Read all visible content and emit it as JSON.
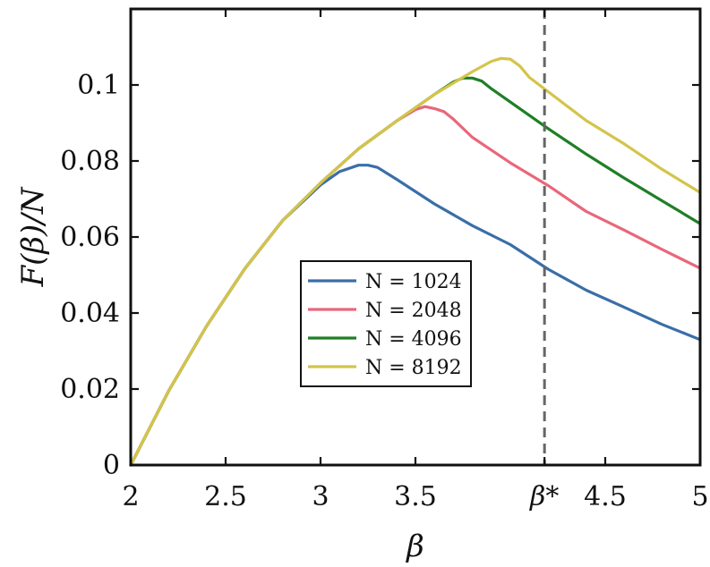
{
  "chart_data": {
    "type": "line",
    "xlabel": "β",
    "ylabel": "F(β)/N",
    "xlim": [
      2,
      5
    ],
    "ylim": [
      0,
      0.12
    ],
    "xticks": [
      {
        "value": 2,
        "label": "2"
      },
      {
        "value": 2.5,
        "label": "2.5"
      },
      {
        "value": 3,
        "label": "3"
      },
      {
        "value": 3.5,
        "label": "3.5"
      },
      {
        "value": 4.18,
        "label": "β*"
      },
      {
        "value": 4.5,
        "label": "4.5"
      },
      {
        "value": 5,
        "label": "5"
      }
    ],
    "yticks": [
      {
        "value": 0,
        "label": "0"
      },
      {
        "value": 0.02,
        "label": "0.02"
      },
      {
        "value": 0.04,
        "label": "0.04"
      },
      {
        "value": 0.06,
        "label": "0.06"
      },
      {
        "value": 0.08,
        "label": "0.08"
      },
      {
        "value": 0.1,
        "label": "0.1"
      }
    ],
    "reference_line": {
      "x": 4.18,
      "label": "β*",
      "style": "dashed",
      "color": "#666666"
    },
    "legend_position": "lower-center",
    "grid": false,
    "series": [
      {
        "name": "N = 1024",
        "color": "#3a6ea8",
        "x": [
          2.0,
          2.2,
          2.4,
          2.6,
          2.8,
          3.0,
          3.1,
          3.2,
          3.25,
          3.3,
          3.4,
          3.6,
          3.8,
          4.0,
          4.2,
          4.4,
          4.6,
          4.8,
          5.0
        ],
        "y": [
          0.0,
          0.0195,
          0.0366,
          0.0516,
          0.0643,
          0.0737,
          0.0772,
          0.0789,
          0.0789,
          0.0783,
          0.0752,
          0.0687,
          0.063,
          0.058,
          0.0515,
          0.046,
          0.0415,
          0.037,
          0.033
        ]
      },
      {
        "name": "N = 2048",
        "color": "#e8677a",
        "x": [
          2.0,
          2.2,
          2.4,
          2.6,
          2.8,
          3.0,
          3.2,
          3.4,
          3.5,
          3.55,
          3.6,
          3.65,
          3.7,
          3.8,
          4.0,
          4.2,
          4.4,
          4.6,
          4.8,
          5.0
        ],
        "y": [
          0.0,
          0.0195,
          0.0366,
          0.0516,
          0.0643,
          0.0742,
          0.0832,
          0.0905,
          0.0935,
          0.0943,
          0.0938,
          0.093,
          0.091,
          0.0862,
          0.0795,
          0.0735,
          0.0667,
          0.0618,
          0.0567,
          0.0518
        ]
      },
      {
        "name": "N = 4096",
        "color": "#1f7f26",
        "x": [
          2.0,
          2.2,
          2.4,
          2.6,
          2.8,
          3.0,
          3.2,
          3.4,
          3.6,
          3.7,
          3.75,
          3.8,
          3.85,
          3.9,
          4.0,
          4.2,
          4.4,
          4.6,
          4.8,
          5.0
        ],
        "y": [
          0.0,
          0.0195,
          0.0366,
          0.0516,
          0.0643,
          0.0742,
          0.0832,
          0.0905,
          0.0975,
          0.1008,
          0.1018,
          0.1018,
          0.101,
          0.099,
          0.0955,
          0.0885,
          0.0818,
          0.0755,
          0.0695,
          0.0635
        ]
      },
      {
        "name": "N = 8192",
        "color": "#d4c44a",
        "x": [
          2.0,
          2.2,
          2.4,
          2.6,
          2.8,
          3.0,
          3.2,
          3.4,
          3.6,
          3.8,
          3.9,
          3.95,
          4.0,
          4.05,
          4.1,
          4.2,
          4.4,
          4.6,
          4.8,
          5.0
        ],
        "y": [
          0.0,
          0.0195,
          0.0366,
          0.0516,
          0.0643,
          0.0742,
          0.0832,
          0.0905,
          0.0975,
          0.1035,
          0.1062,
          0.107,
          0.1068,
          0.105,
          0.102,
          0.0982,
          0.0906,
          0.0845,
          0.0778,
          0.0717
        ]
      }
    ]
  }
}
